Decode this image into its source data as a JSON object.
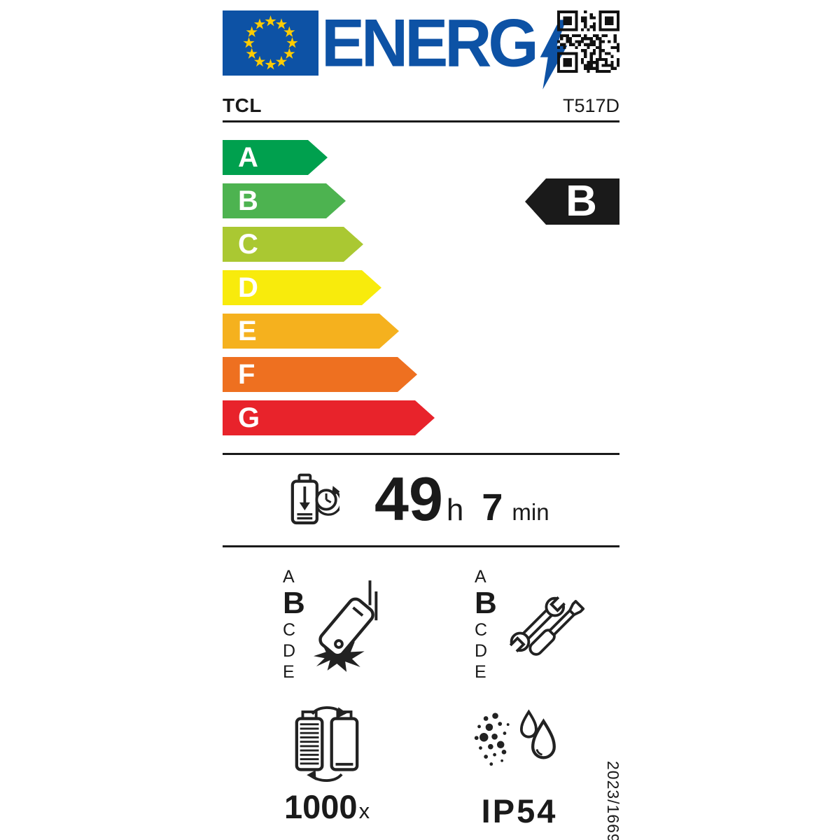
{
  "label": {
    "logo": "ENERG",
    "brand": "TCL",
    "model": "T517D",
    "colors": {
      "eu_blue": "#0d52a5",
      "star_yellow": "#ffcc00",
      "rating_black": "#1a1a1a"
    },
    "energy_scale": {
      "classes": [
        {
          "letter": "A",
          "color": "#00a04e"
        },
        {
          "letter": "B",
          "color": "#4db350"
        },
        {
          "letter": "C",
          "color": "#aac832"
        },
        {
          "letter": "D",
          "color": "#f8eb0c"
        },
        {
          "letter": "E",
          "color": "#f5b11e"
        },
        {
          "letter": "F",
          "color": "#ee7020"
        },
        {
          "letter": "G",
          "color": "#e8232b"
        }
      ],
      "rating": "B"
    },
    "battery_life": {
      "hours": "49",
      "hours_unit": "h",
      "minutes": "7",
      "minutes_unit": "min"
    },
    "drop_resistance": {
      "letters": [
        "A",
        "B",
        "C",
        "D",
        "E"
      ],
      "rating": "B"
    },
    "repairability": {
      "letters": [
        "A",
        "B",
        "C",
        "D",
        "E"
      ],
      "rating": "B"
    },
    "battery_endurance_cycles": {
      "value": "1000",
      "suffix": "x"
    },
    "ingress_protection": "IP54",
    "regulation_number": "2023/1669"
  }
}
